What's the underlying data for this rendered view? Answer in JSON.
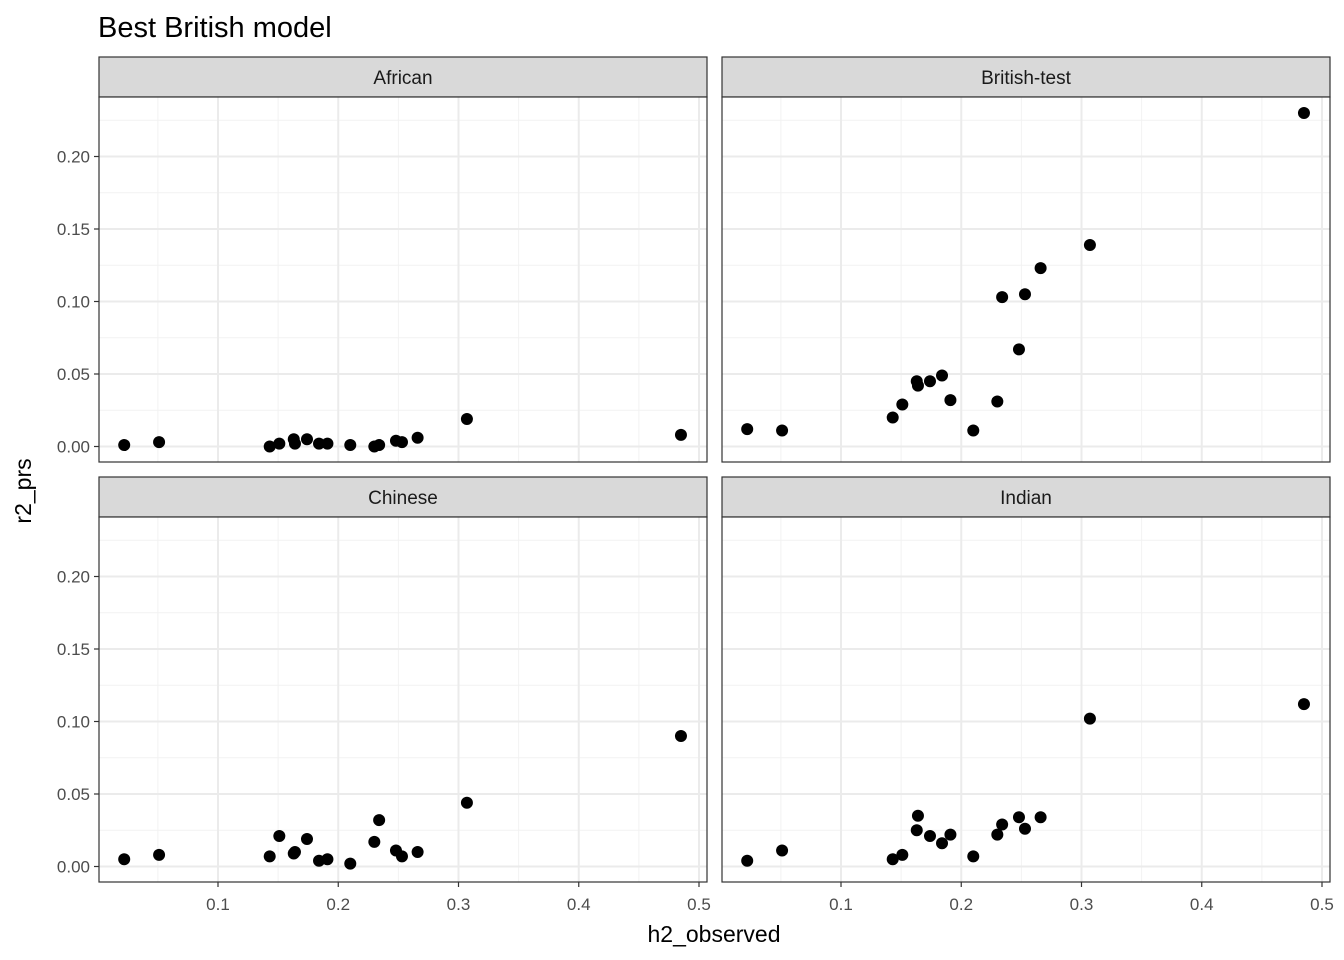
{
  "chart_data": {
    "type": "scatter",
    "title": "Best British model",
    "xlabel": "h2_observed",
    "ylabel": "r2_prs",
    "xlim": [
      0.0,
      0.508
    ],
    "ylim": [
      -0.01,
      0.24
    ],
    "x_ticks": [
      0.1,
      0.2,
      0.3,
      0.4,
      0.5
    ],
    "x_tick_labels": [
      "0.1",
      "0.2",
      "0.3",
      "0.4",
      "0.5"
    ],
    "y_ticks": [
      0.0,
      0.05,
      0.1,
      0.15,
      0.2
    ],
    "y_tick_labels": [
      "0.00",
      "0.05",
      "0.10",
      "0.15",
      "0.20"
    ],
    "grid": true,
    "facets": [
      {
        "label": "African",
        "points": [
          [
            0.022,
            0.001
          ],
          [
            0.051,
            0.003
          ],
          [
            0.143,
            0.0
          ],
          [
            0.151,
            0.002
          ],
          [
            0.163,
            0.005
          ],
          [
            0.164,
            0.002
          ],
          [
            0.174,
            0.005
          ],
          [
            0.184,
            0.002
          ],
          [
            0.191,
            0.002
          ],
          [
            0.21,
            0.001
          ],
          [
            0.23,
            0.0
          ],
          [
            0.234,
            0.001
          ],
          [
            0.248,
            0.004
          ],
          [
            0.253,
            0.003
          ],
          [
            0.266,
            0.006
          ],
          [
            0.307,
            0.019
          ],
          [
            0.485,
            0.008
          ]
        ]
      },
      {
        "label": "British-test",
        "points": [
          [
            0.022,
            0.012
          ],
          [
            0.051,
            0.011
          ],
          [
            0.143,
            0.02
          ],
          [
            0.151,
            0.029
          ],
          [
            0.163,
            0.045
          ],
          [
            0.164,
            0.042
          ],
          [
            0.174,
            0.045
          ],
          [
            0.184,
            0.049
          ],
          [
            0.191,
            0.032
          ],
          [
            0.21,
            0.011
          ],
          [
            0.23,
            0.031
          ],
          [
            0.234,
            0.103
          ],
          [
            0.248,
            0.067
          ],
          [
            0.253,
            0.105
          ],
          [
            0.266,
            0.123
          ],
          [
            0.307,
            0.139
          ],
          [
            0.485,
            0.23
          ]
        ]
      },
      {
        "label": "Chinese",
        "points": [
          [
            0.022,
            0.005
          ],
          [
            0.051,
            0.008
          ],
          [
            0.143,
            0.007
          ],
          [
            0.151,
            0.021
          ],
          [
            0.163,
            0.009
          ],
          [
            0.164,
            0.01
          ],
          [
            0.174,
            0.019
          ],
          [
            0.184,
            0.004
          ],
          [
            0.191,
            0.005
          ],
          [
            0.21,
            0.002
          ],
          [
            0.23,
            0.017
          ],
          [
            0.234,
            0.032
          ],
          [
            0.248,
            0.011
          ],
          [
            0.253,
            0.007
          ],
          [
            0.266,
            0.01
          ],
          [
            0.307,
            0.044
          ],
          [
            0.485,
            0.09
          ]
        ]
      },
      {
        "label": "Indian",
        "points": [
          [
            0.022,
            0.004
          ],
          [
            0.051,
            0.011
          ],
          [
            0.143,
            0.005
          ],
          [
            0.151,
            0.008
          ],
          [
            0.163,
            0.025
          ],
          [
            0.164,
            0.035
          ],
          [
            0.174,
            0.021
          ],
          [
            0.184,
            0.016
          ],
          [
            0.191,
            0.022
          ],
          [
            0.21,
            0.007
          ],
          [
            0.23,
            0.022
          ],
          [
            0.234,
            0.029
          ],
          [
            0.248,
            0.034
          ],
          [
            0.253,
            0.026
          ],
          [
            0.266,
            0.034
          ],
          [
            0.307,
            0.102
          ],
          [
            0.485,
            0.112
          ]
        ]
      }
    ],
    "colors": {
      "points": "#000000",
      "strip_fill": "#d9d9d9",
      "panel_border": "#333333",
      "grid_major": "#ebebeb",
      "grid_minor": "#f2f2f2",
      "tick_label": "#4d4d4d"
    }
  }
}
